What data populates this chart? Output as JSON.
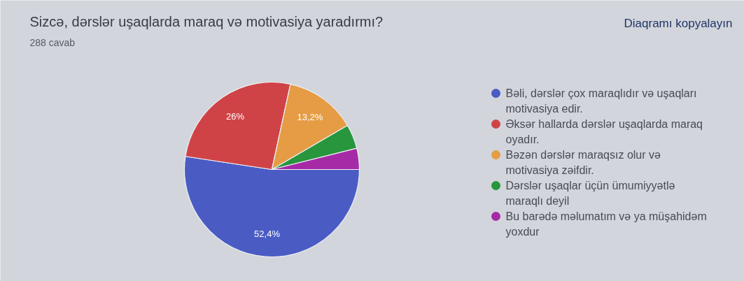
{
  "chart_data": {
    "type": "pie",
    "title": "Sizcə, dərslər uşaqlarda maraq və motivasiya yaradırmı?",
    "subtitle": "288 cavab",
    "annotations": [
      "Diaqramı kopyalayın"
    ],
    "categories": [
      "Bəli, dərslər çox maraqlıdır və uşaqları motivasiya edir.",
      "Əksər hallarda dərslər uşaqlarda maraq oyadır.",
      "Bəzən dərslər maraqsız olur və motivasiya zəifdir.",
      "Dərslər uşaqlar üçün ümumiyyətlə maraqlı deyil",
      "Bu barədə məlumatım və ya müşahidəm yoxdur"
    ],
    "values": [
      52.4,
      26,
      13.2,
      4.5,
      3.9
    ],
    "colors": [
      "#4a5cc4",
      "#cf4347",
      "#e59c45",
      "#27963c",
      "#a62aa6"
    ],
    "value_labels": [
      "52,4%",
      "26%",
      "13,2%",
      null,
      null
    ],
    "legend": "right"
  }
}
